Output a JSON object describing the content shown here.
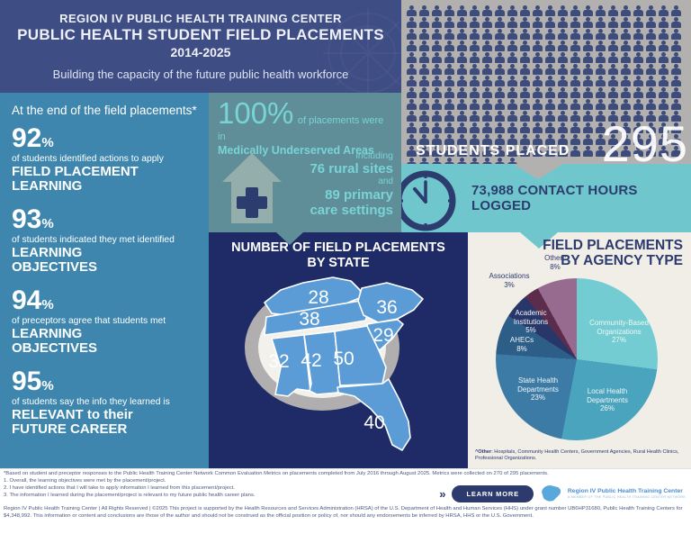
{
  "header": {
    "line1": "REGION IV PUBLIC HEALTH TRAINING CENTER",
    "line2": "PUBLIC HEALTH STUDENT FIELD PLACEMENTS",
    "line3": "2014-2025",
    "subtitle": "Building the capacity of the future public health workforce"
  },
  "left_panel": {
    "intro": "At the end of the field placements*",
    "stats": [
      {
        "value": "92",
        "suffix": "%",
        "desc": "of students identified actions to apply",
        "headline": "FIELD PLACEMENT\nLEARNING"
      },
      {
        "value": "93",
        "suffix": "%",
        "desc": "of students indicated they met identified",
        "headline": "LEARNING\nOBJECTIVES"
      },
      {
        "value": "94",
        "suffix": "%",
        "desc": "of preceptors agree that students met",
        "headline": "LEARNING\nOBJECTIVES"
      },
      {
        "value": "95",
        "suffix": "%",
        "desc": "of students say the info they learned is",
        "headline": "RELEVANT to their\nFUTURE CAREER"
      }
    ]
  },
  "underserved": {
    "big_pct": "100%",
    "lead": "of placements were in",
    "highlight": "Medically Underserved Areas",
    "including": "including",
    "rural": "76 rural sites",
    "and": "and",
    "primary": "89 primary\ncare settings"
  },
  "students": {
    "label": "STUDENTS PLACED"
  },
  "contact_hours": {
    "label": "73,988 CONTACT HOURS LOGGED"
  },
  "map": {
    "title_line1": "NUMBER OF FIELD PLACEMENTS",
    "title_line2": "BY STATE"
  },
  "agency": {
    "title_line1": "FIELD PLACEMENTS",
    "title_line2": "BY AGENCY TYPE",
    "labels": {
      "other": "Other^\n8%",
      "associations": "Associations\n3%",
      "academic": "Academic\nInstitutions\n5%",
      "ahecs": "AHECs\n8%",
      "state": "State Health\nDepartments\n23%",
      "local": "Local Health\nDepartments\n26%",
      "cbo": "Community-Based\nOrganizations\n27%"
    },
    "footnote_label": "^Other",
    "footnote_rest": ": Hospitals, Community Health Centers, Government Agencies, Rural Health Clinics, Professional Organizations."
  },
  "chart_data": [
    {
      "type": "pictogram",
      "label": "STUDENTS PLACED",
      "value": 295,
      "icon": "person-icon",
      "icon_color": "#3e4c7c"
    },
    {
      "type": "map",
      "title": "NUMBER OF FIELD PLACEMENTS BY STATE",
      "categories": [
        "Kentucky",
        "Tennessee",
        "North Carolina",
        "South Carolina",
        "Mississippi",
        "Alabama",
        "Georgia",
        "Florida"
      ],
      "values": [
        28,
        38,
        36,
        29,
        32,
        42,
        50,
        40
      ],
      "region_color": "#5b9cd7"
    },
    {
      "type": "pie",
      "title": "FIELD PLACEMENTS BY AGENCY TYPE",
      "categories": [
        "Community-Based Organizations",
        "Local Health Departments",
        "State Health Departments",
        "AHECs",
        "Academic Institutions",
        "Associations",
        "Other"
      ],
      "values": [
        27,
        26,
        23,
        8,
        5,
        3,
        8
      ],
      "colors": [
        "#72ccd1",
        "#4aa4bd",
        "#3b7ba6",
        "#2c5e88",
        "#273769",
        "#5c2c4c",
        "#976a90"
      ],
      "start_angle": "top",
      "direction": "clockwise"
    }
  ],
  "footer": {
    "footnote_primary": "*Based on student and preceptor responses to the Public Health Training Center Network Common Evaluation Metrics on placements completed from July 2016 through August 2025. Metrics were collected on 270 of 295 placements.",
    "notes": [
      "1. Overall, the learning objectives were met by the placement/project.",
      "2. I have identified actions that I will take to apply information I learned from this placement/project.",
      "3. The information I learned during the placement/project is relevant to my future public health career plans."
    ],
    "learn_more": "LEARN MORE",
    "chevrons": "»",
    "logo_name": "Region IV Public Health Training Center",
    "logo_tagline": "A MEMBER OF THE PUBLIC HEALTH TRAINING CENTER NETWORK",
    "disclaimer": "Region IV Public Health Training Center | All Rights Reserved | ©2025 This project is supported by the Health Resources and Services Administration (HRSA) of the U.S. Department of Health and Human Services (HHS) under grant number UB6HP31680, Public Health Training Centers for $4,348,992. This information or content and conclusions are those of the author and should not be construed as the official position or policy of, nor should any endorsements be inferred by HRSA, HHS or the U.S. Government."
  }
}
